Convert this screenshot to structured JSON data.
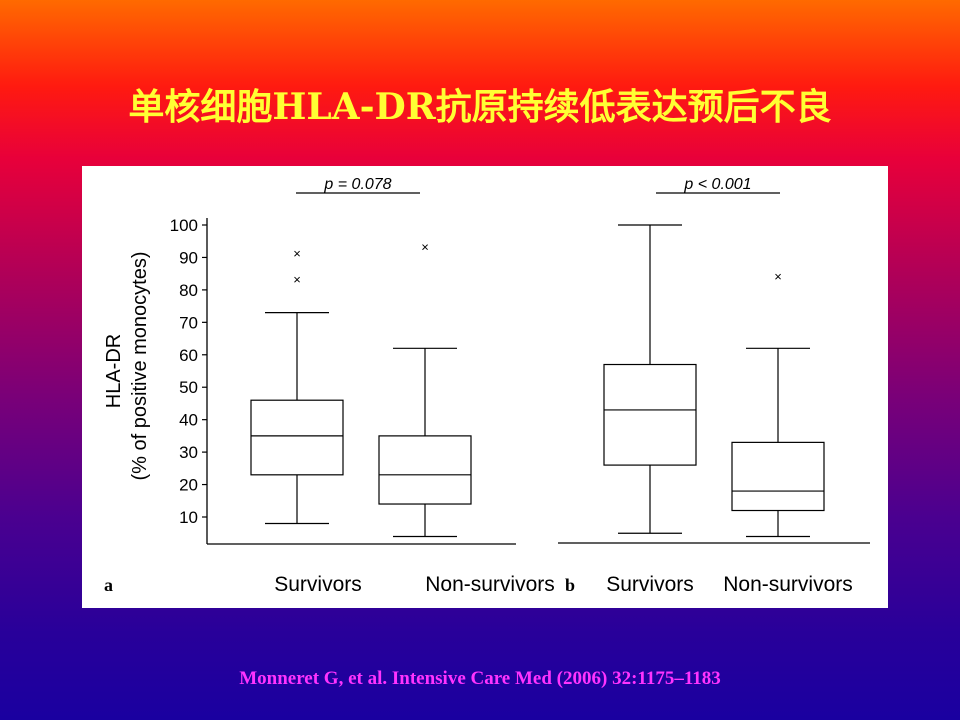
{
  "slide": {
    "title": "单核细胞HLA-DR抗原持续低表达预后不良",
    "citation": "Monneret  G, et al. Intensive Care Med (2006) 32:1175–1183"
  },
  "chart_data": [
    {
      "type": "box",
      "panel_label": "a",
      "ylabel_line1": "HLA-DR",
      "ylabel_line2": "(% of positive monocytes)",
      "ylim": [
        0,
        100
      ],
      "yticks": [
        10,
        20,
        30,
        40,
        50,
        60,
        70,
        80,
        90,
        100
      ],
      "p_value": "p = 0.078",
      "categories": [
        "Survivors",
        "Non-survivors"
      ],
      "boxes": [
        {
          "name": "Survivors",
          "whisker_low": 8,
          "q1": 23,
          "median": 35,
          "q3": 46,
          "whisker_high": 73,
          "outliers": [
            83,
            91
          ]
        },
        {
          "name": "Non-survivors",
          "whisker_low": 4,
          "q1": 14,
          "median": 23,
          "q3": 35,
          "whisker_high": 62,
          "outliers": [
            93
          ]
        }
      ]
    },
    {
      "type": "box",
      "panel_label": "b",
      "ylim": [
        0,
        100
      ],
      "p_value": "p < 0.001",
      "categories": [
        "Survivors",
        "Non-survivors"
      ],
      "boxes": [
        {
          "name": "Survivors",
          "whisker_low": 5,
          "q1": 26,
          "median": 43,
          "q3": 57,
          "whisker_high": 100,
          "outliers": []
        },
        {
          "name": "Non-survivors",
          "whisker_low": 4,
          "q1": 12,
          "median": 18,
          "q3": 33,
          "whisker_high": 62,
          "outliers": [
            84
          ]
        }
      ]
    }
  ]
}
